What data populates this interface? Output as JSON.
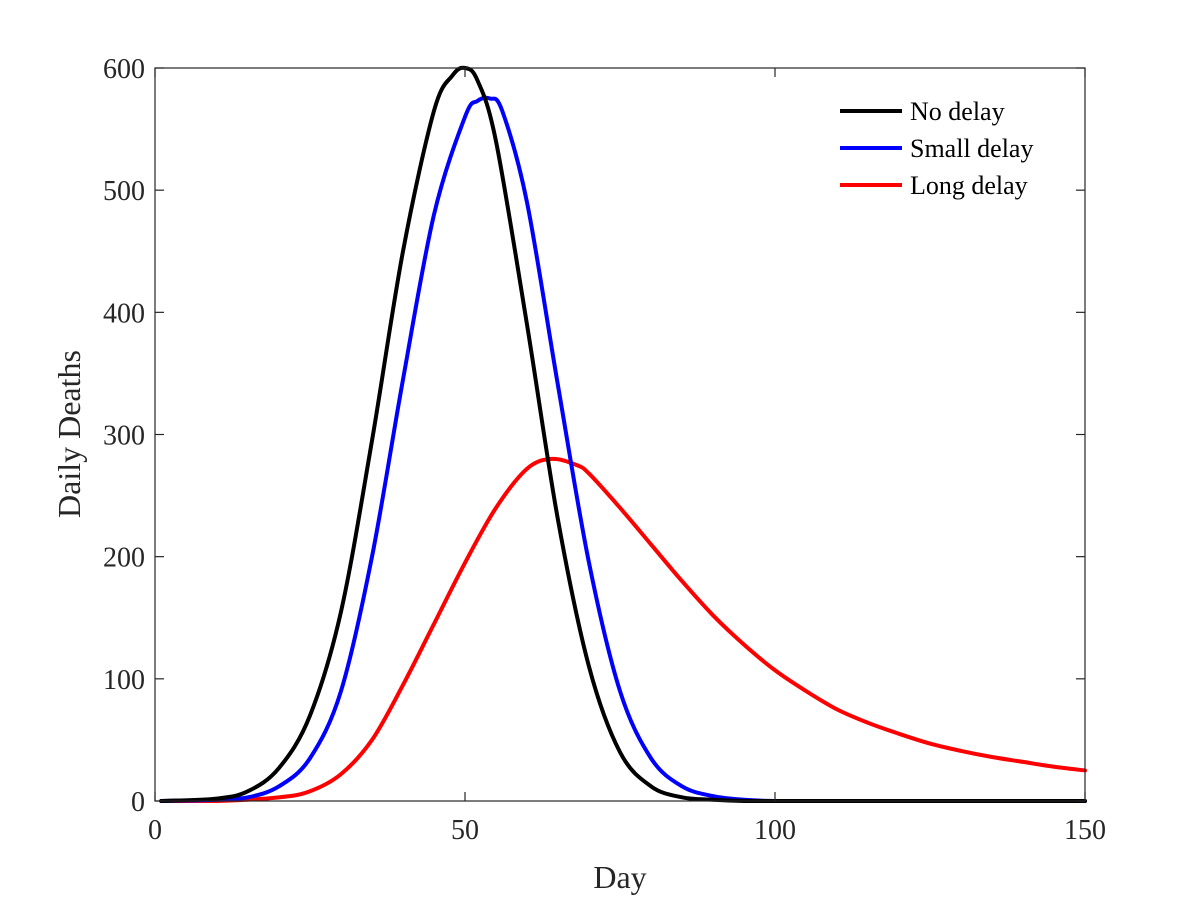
{
  "chart_data": {
    "type": "line",
    "title": "",
    "xlabel": "Day",
    "ylabel": "Daily Deaths",
    "xlim": [
      0,
      150
    ],
    "ylim": [
      0,
      600
    ],
    "xticks": [
      0,
      50,
      100,
      150
    ],
    "yticks": [
      0,
      100,
      200,
      300,
      400,
      500,
      600
    ],
    "xtick_labels": [
      "0",
      "50",
      "100",
      "150"
    ],
    "ytick_labels": [
      "0",
      "100",
      "200",
      "300",
      "400",
      "500",
      "600"
    ],
    "grid": false,
    "legend": "top-right",
    "series": [
      {
        "name": "No delay",
        "color": "#000000",
        "x": [
          1,
          10,
          15,
          20,
          25,
          30,
          35,
          40,
          45,
          48,
          50,
          52,
          55,
          60,
          65,
          70,
          75,
          80,
          85,
          90,
          95,
          100,
          110,
          120,
          130,
          140,
          150
        ],
        "y": [
          0,
          2,
          8,
          27,
          70,
          155,
          295,
          450,
          565,
          594,
          600,
          590,
          540,
          390,
          230,
          110,
          40,
          12,
          3,
          1,
          0,
          0,
          0,
          0,
          0,
          0,
          0
        ]
      },
      {
        "name": "Small delay",
        "color": "#0000ff",
        "x": [
          1,
          10,
          15,
          20,
          25,
          30,
          35,
          40,
          45,
          50,
          52,
          54,
          56,
          60,
          65,
          70,
          75,
          80,
          85,
          90,
          95,
          100,
          110,
          120,
          130,
          140,
          150
        ],
        "y": [
          0,
          1,
          3,
          12,
          35,
          90,
          200,
          345,
          480,
          560,
          573,
          575,
          565,
          490,
          340,
          195,
          90,
          35,
          12,
          4,
          1,
          0,
          0,
          0,
          0,
          0,
          0
        ]
      },
      {
        "name": "Long delay",
        "color": "#ff0000",
        "x": [
          1,
          10,
          20,
          25,
          30,
          35,
          40,
          45,
          50,
          55,
          60,
          64,
          68,
          70,
          75,
          80,
          85,
          90,
          95,
          100,
          105,
          110,
          115,
          120,
          125,
          130,
          135,
          140,
          145,
          150
        ],
        "y": [
          0,
          0,
          3,
          8,
          22,
          50,
          95,
          145,
          195,
          240,
          272,
          280,
          275,
          268,
          240,
          210,
          180,
          152,
          128,
          107,
          90,
          75,
          64,
          55,
          47,
          41,
          36,
          32,
          28,
          25
        ]
      }
    ]
  }
}
